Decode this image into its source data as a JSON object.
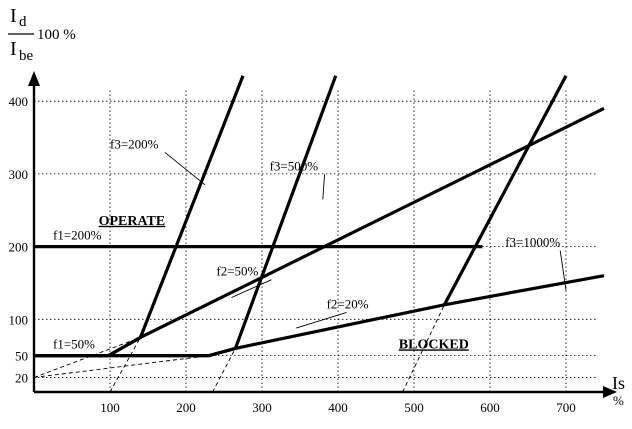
{
  "chart_data": {
    "type": "line",
    "ylabel": {
      "numerator": "I",
      "numerator_sub": "d",
      "denominator": "I",
      "denominator_sub": "be",
      "suffix": "100 %"
    },
    "xlabel": {
      "main": "Is",
      "unit": "%"
    },
    "xlim": [
      0,
      760
    ],
    "ylim": [
      0,
      440
    ],
    "x_ticks": [
      100,
      200,
      300,
      400,
      500,
      600,
      700
    ],
    "y_ticks": [
      20,
      50,
      100,
      200,
      300,
      400
    ],
    "y_gridlines": [
      20,
      50,
      100,
      200,
      300,
      400
    ],
    "x_gridlines": [
      100,
      200,
      300,
      400,
      500,
      600,
      700
    ],
    "grid": true,
    "series": [
      {
        "points": [
          [
            0,
            50
          ],
          [
            98,
            50
          ],
          [
            140,
            75
          ],
          [
            275,
            435
          ]
        ]
      },
      {
        "points": [
          [
            0,
            50
          ],
          [
            230,
            50
          ],
          [
            265,
            60
          ],
          [
            397,
            435
          ]
        ]
      },
      {
        "points": [
          [
            0,
            50
          ],
          [
            230,
            50
          ],
          [
            265,
            60
          ],
          [
            540,
            120
          ],
          [
            750,
            160
          ]
        ]
      },
      {
        "points": [
          [
            98,
            50
          ],
          [
            140,
            75
          ],
          [
            750,
            390
          ]
        ]
      },
      {
        "points": [
          [
            0,
            200
          ],
          [
            590,
            200
          ]
        ]
      },
      {
        "points": [
          [
            540,
            120
          ],
          [
            700,
            435
          ]
        ]
      }
    ],
    "dashed_guides": [
      {
        "points": [
          [
            0,
            20
          ],
          [
            140,
            75
          ]
        ]
      },
      {
        "points": [
          [
            0,
            20
          ],
          [
            230,
            50
          ]
        ]
      },
      {
        "points": [
          [
            100,
            0
          ],
          [
            140,
            75
          ]
        ]
      },
      {
        "points": [
          [
            235,
            0
          ],
          [
            265,
            60
          ]
        ]
      },
      {
        "points": [
          [
            485,
            0
          ],
          [
            540,
            120
          ]
        ]
      }
    ],
    "annotations": [
      {
        "text": "f3=200%",
        "anchor_x": 100,
        "anchor_y": 335,
        "target_x": 225,
        "target_y": 285
      },
      {
        "text": "f3=500%",
        "anchor_x": 310,
        "anchor_y": 305,
        "target_x": 380,
        "target_y": 265
      },
      {
        "text": "f3=1000%",
        "anchor_x": 620,
        "anchor_y": 200,
        "target_x": 700,
        "target_y": 140
      },
      {
        "text": "f2=50%",
        "anchor_x": 240,
        "anchor_y": 160,
        "target_x": 260,
        "target_y": 130
      },
      {
        "text": "f2=20%",
        "anchor_x": 385,
        "anchor_y": 115,
        "target_x": 345,
        "target_y": 88
      },
      {
        "text": "f1=200%",
        "anchor_x": 25,
        "anchor_y": 210
      },
      {
        "text": "f1=50%",
        "anchor_x": 25,
        "anchor_y": 60
      }
    ],
    "regions": [
      {
        "text": "OPERATE",
        "x": 85,
        "y": 230
      },
      {
        "text": "BLOCKED",
        "x": 480,
        "y": 60
      }
    ]
  }
}
